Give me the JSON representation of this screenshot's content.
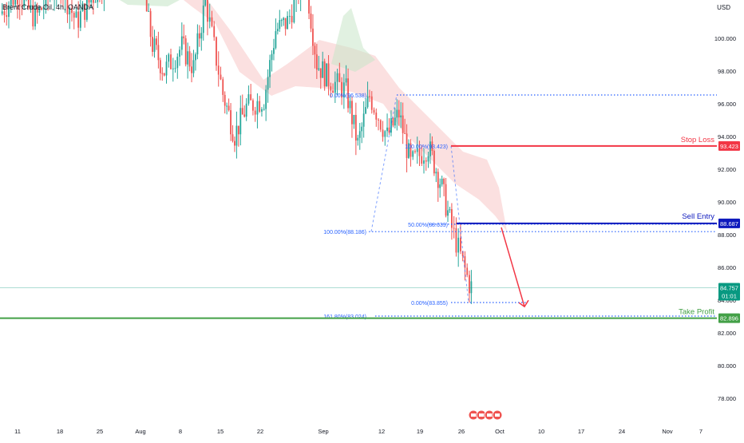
{
  "chart_data": {
    "type": "candlestick",
    "title": "Brent Crude Oil, 4h, OANDA",
    "currency": "USD",
    "ylim": [
      76.4,
      104.4
    ],
    "y_ticks": [
      "100.000",
      "98.000",
      "96.000",
      "94.000",
      "92.000",
      "90.000",
      "88.000",
      "86.000",
      "84.000",
      "82.000",
      "80.000",
      "78.000"
    ],
    "x_ticks": [
      "11",
      "18",
      "25",
      "Aug",
      "8",
      "15",
      "22",
      "Sep",
      "12",
      "19",
      "26",
      "Oct",
      "10",
      "17",
      "24",
      "Nov",
      "7"
    ],
    "price_path": [
      [
        "Jul 8",
        101.5
      ],
      [
        "Jul 11",
        102.8
      ],
      [
        "Jul 14",
        101.2
      ],
      [
        "Jul 18",
        103.5
      ],
      [
        "Jul 21",
        101.0
      ],
      [
        "Jul 25",
        103.2
      ],
      [
        "Jul 28",
        103.9
      ],
      [
        "Aug 1",
        103.6
      ],
      [
        "Aug 3",
        99.6
      ],
      [
        "Aug 5",
        98.0
      ],
      [
        "Aug 8",
        99.5
      ],
      [
        "Aug 10",
        98.2
      ],
      [
        "Aug 12",
        102.3
      ],
      [
        "Aug 15",
        96.6
      ],
      [
        "Aug 17",
        94.1
      ],
      [
        "Aug 19",
        95.8
      ],
      [
        "Aug 22",
        96.3
      ],
      [
        "Aug 24",
        100.5
      ],
      [
        "Aug 26",
        101.0
      ],
      [
        "Aug 29",
        104.0
      ],
      [
        "Aug 31",
        98.5
      ],
      [
        "Sep 2",
        97.5
      ],
      [
        "Sep 5",
        96.8
      ],
      [
        "Sep 7",
        93.5
      ],
      [
        "Sep 9",
        96.5
      ],
      [
        "Sep 12",
        94.0
      ],
      [
        "Sep 14",
        95.4
      ],
      [
        "Sep 16",
        92.3
      ],
      [
        "Sep 19",
        93.4
      ],
      [
        "Sep 21",
        91.3
      ],
      [
        "Sep 23",
        88.4
      ],
      [
        "Sep 26",
        85.0
      ],
      [
        "Sep 28",
        83.9
      ],
      [
        "Sep 29",
        84.757
      ]
    ],
    "annotations": {
      "stop_loss": {
        "label": "Stop Loss",
        "value": "93.423"
      },
      "sell_entry": {
        "label": "Sell Entry",
        "value": "88.687"
      },
      "take_profit": {
        "label": "Take Profit",
        "value": "82.896"
      },
      "current_price": {
        "value": "84.757",
        "countdown": "01:01"
      },
      "fib_levels": [
        {
          "label": "0.00%(96.538)",
          "price": 96.538
        },
        {
          "label": "100.00%(88.186)",
          "price": 88.186
        },
        {
          "label": "100.00%(93.423)",
          "price": 93.423
        },
        {
          "label": "50.00%(88.639)",
          "price": 88.639
        },
        {
          "label": "0.00%(83.855)",
          "price": 83.855
        },
        {
          "label": "161.80%(83.024)",
          "price": 83.024
        }
      ]
    },
    "colors": {
      "up": "#26a69a",
      "down": "#ef5350",
      "stop_loss": "#f23645",
      "sell_entry": "#0d19bd",
      "take_profit": "#43a047",
      "fib": "#2962ff",
      "current": "#089981",
      "cloud_bear": "#f8c6c6",
      "cloud_bull": "#c8e6c9"
    }
  }
}
